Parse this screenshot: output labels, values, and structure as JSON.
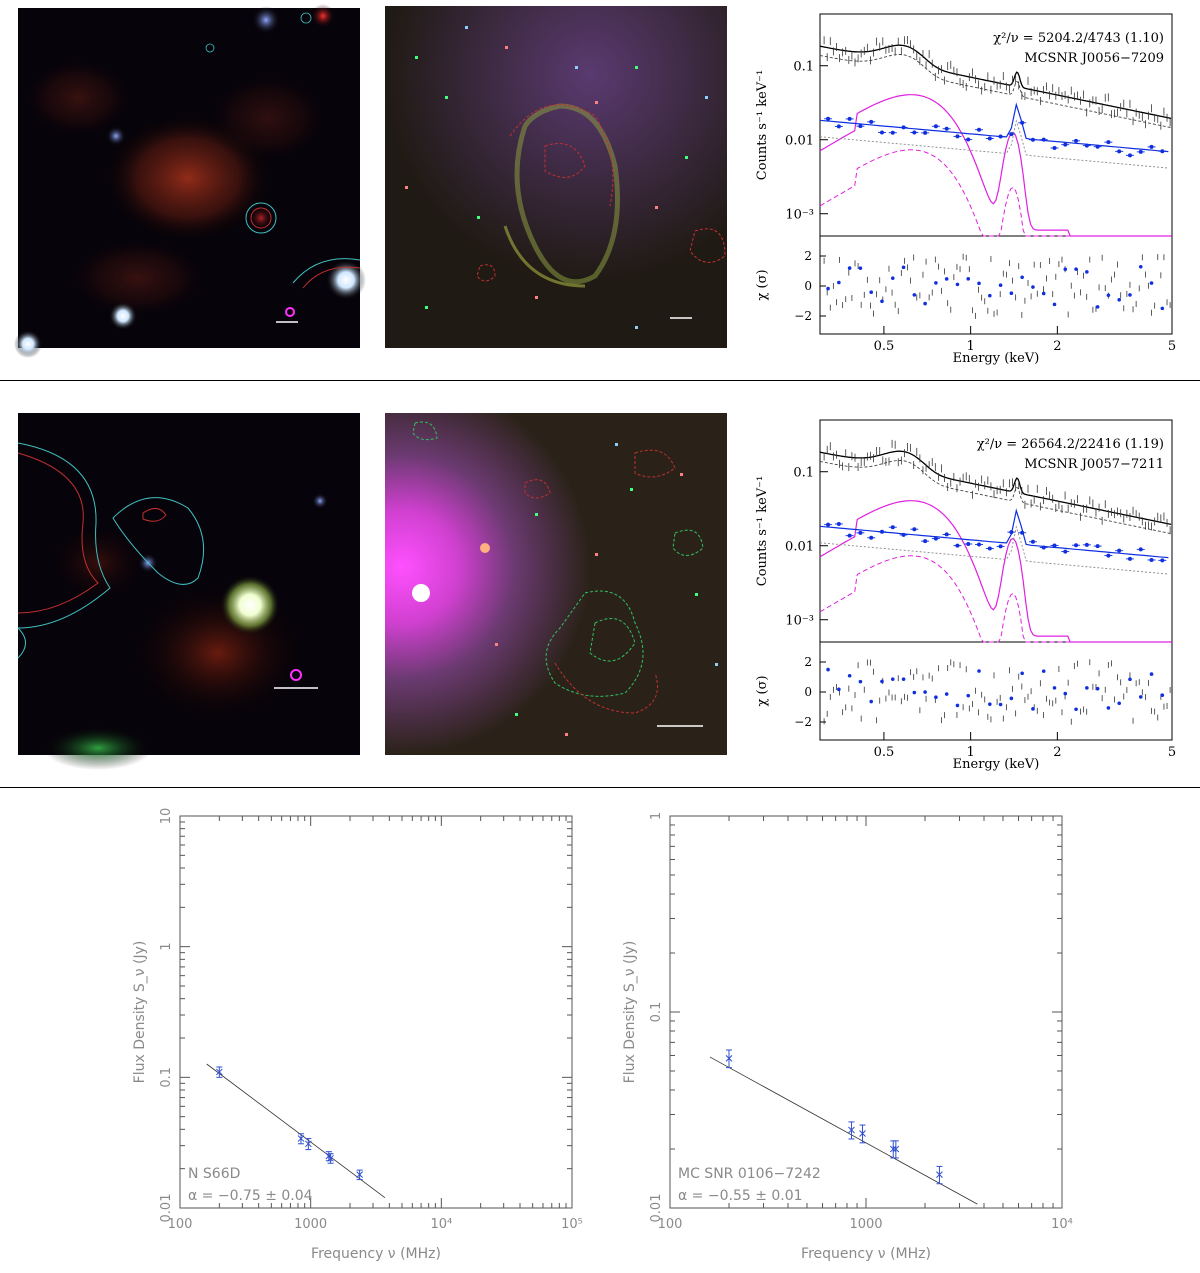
{
  "rows": [
    {
      "spectrum": {
        "chi_label": "χ²/ν = 5204.2/4743 (1.10)",
        "source_label": "MCSNR J0056−7209",
        "ylabel": "Counts s⁻¹ keV⁻¹",
        "resid_label": "χ (σ)",
        "xlabel": "Energy (keV)",
        "y_ticks": [
          "0.1",
          "0.01",
          "10⁻³"
        ],
        "resid_ticks": [
          "2",
          "0",
          "−2"
        ],
        "x_ticks": [
          "0.5",
          "1",
          "2",
          "5"
        ]
      }
    },
    {
      "spectrum": {
        "chi_label": "χ²/ν = 26564.2/22416 (1.19)",
        "source_label": "MCSNR J0057−7211",
        "ylabel": "Counts s⁻¹ keV⁻¹",
        "resid_label": "χ (σ)",
        "xlabel": "Energy (keV)",
        "y_ticks": [
          "0.1",
          "0.01",
          "10⁻³"
        ],
        "resid_ticks": [
          "2",
          "0",
          "−2"
        ],
        "x_ticks": [
          "0.5",
          "1",
          "2",
          "5"
        ]
      }
    }
  ],
  "radio": [
    {
      "name_label": "N S66D",
      "alpha_label": "α = −0.75 ±  0.04",
      "ylabel": "Flux Density S_ν (Jy)",
      "xlabel": "Frequency ν (MHz)",
      "y_ticks": [
        "10",
        "1",
        "0.1",
        "0.01"
      ],
      "x_ticks": [
        "100",
        "1000",
        "10⁴",
        "10⁵"
      ],
      "chart_data": {
        "type": "scatter",
        "x_scale": "log",
        "y_scale": "log",
        "xlim": [
          100,
          100000
        ],
        "ylim": [
          0.01,
          10
        ],
        "points": [
          {
            "x": 200,
            "y": 0.11,
            "err": 0.01
          },
          {
            "x": 843,
            "y": 0.034,
            "err": 0.003
          },
          {
            "x": 960,
            "y": 0.031,
            "err": 0.003
          },
          {
            "x": 1377,
            "y": 0.025,
            "err": 0.002
          },
          {
            "x": 1420,
            "y": 0.024,
            "err": 0.002
          },
          {
            "x": 2370,
            "y": 0.018,
            "err": 0.0015
          }
        ],
        "fit": {
          "alpha": -0.75,
          "x_range": [
            160,
            3700
          ],
          "y_at_1000": 0.032
        }
      }
    },
    {
      "name_label": "MC SNR 0106−7242",
      "alpha_label": "α = −0.55 ±  0.01",
      "ylabel": "Flux Density S_ν (Jy)",
      "xlabel": "Frequency ν (MHz)",
      "y_ticks": [
        "1",
        "0.1",
        "0.01"
      ],
      "x_ticks": [
        "100",
        "1000",
        "10⁴"
      ],
      "chart_data": {
        "type": "scatter",
        "x_scale": "log",
        "y_scale": "log",
        "xlim": [
          100,
          10000
        ],
        "ylim": [
          0.01,
          1
        ],
        "points": [
          {
            "x": 200,
            "y": 0.058,
            "err": 0.006
          },
          {
            "x": 843,
            "y": 0.025,
            "err": 0.0025
          },
          {
            "x": 960,
            "y": 0.024,
            "err": 0.0025
          },
          {
            "x": 1377,
            "y": 0.02,
            "err": 0.002
          },
          {
            "x": 1420,
            "y": 0.02,
            "err": 0.002
          },
          {
            "x": 2370,
            "y": 0.0148,
            "err": 0.0015
          }
        ],
        "fit": {
          "alpha": -0.55,
          "x_range": [
            160,
            3700
          ],
          "y_at_1000": 0.0215
        }
      }
    }
  ]
}
